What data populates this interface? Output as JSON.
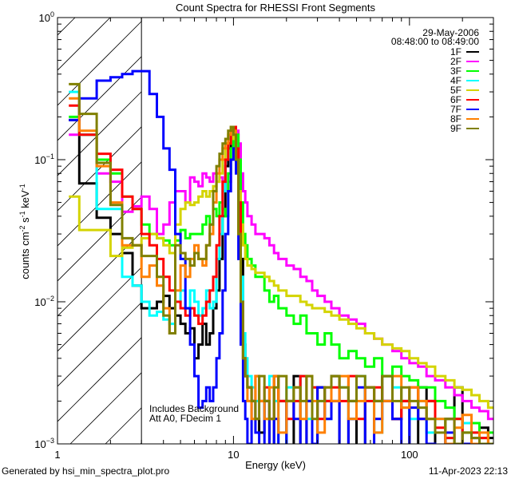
{
  "chart_data": {
    "type": "line",
    "step": true,
    "title": "Count Spectra for RHESSI Front Segments",
    "xlabel": "Energy (keV)",
    "ylabel_parts": [
      "counts cm",
      "-2",
      " s",
      "-1",
      " keV",
      "-1"
    ],
    "xscale": "log",
    "yscale": "log",
    "xlim": [
      1,
      300
    ],
    "ylim": [
      0.001,
      1
    ],
    "x_ticks": [
      {
        "value": 1,
        "label": "1"
      },
      {
        "value": 10,
        "label": "10"
      },
      {
        "value": 100,
        "label": "100"
      }
    ],
    "y_ticks": [
      {
        "value": 1,
        "base": "10",
        "exp": "0"
      },
      {
        "value": 0.1,
        "base": "10",
        "exp": "−1"
      },
      {
        "value": 0.01,
        "base": "10",
        "exp": "−2"
      },
      {
        "value": 0.001,
        "base": "10",
        "exp": "−3"
      }
    ],
    "shaded_region": {
      "from": 1,
      "to": 3,
      "style": "hatched"
    },
    "legend": {
      "placement": "top-right",
      "date": "29-May-2006",
      "time_range": "08:48:00 to 08:49:00"
    },
    "annotations": [
      "Includes Background",
      "Att A0, FDecim 1"
    ],
    "energy_edges": [
      1.16,
      1.33,
      1.67,
      2.0,
      2.33,
      2.67,
      3.0,
      3.33,
      3.67,
      4.0,
      4.33,
      4.67,
      5.0,
      5.33,
      5.67,
      6.0,
      6.33,
      6.67,
      7.0,
      7.33,
      7.67,
      8.0,
      8.33,
      8.67,
      9.0,
      9.33,
      9.67,
      10.0,
      10.33,
      10.67,
      11.0,
      11.33,
      11.67,
      12.0,
      12.67,
      13.33,
      14,
      15,
      16,
      17,
      18,
      20,
      22,
      24,
      26,
      28,
      30,
      33,
      36,
      40,
      45,
      50,
      56,
      63,
      70,
      80,
      90,
      100,
      112,
      125,
      140,
      160,
      180,
      200,
      225,
      250,
      280,
      300
    ],
    "series": [
      {
        "name": "1F",
        "color": "#000000",
        "values": [
          0.19,
          0.068,
          0.039,
          0.03,
          0.022,
          0.013,
          0.009,
          0.009,
          0.01,
          0.011,
          0.009,
          0.008,
          0.007,
          0.006,
          0.0065,
          0.004,
          0.005,
          0.007,
          0.005,
          0.006,
          0.009,
          0.012,
          0.02,
          0.04,
          0.09,
          0.12,
          0.14,
          0.15,
          0.12,
          0.05,
          0.02,
          0.005,
          0.003,
          0.0025,
          0.002,
          0.0015,
          0.0012,
          0.002,
          0.0009,
          0.003,
          0.002,
          0.0009,
          0.003,
          0.0009,
          0.002,
          0.0009,
          0.0025,
          0.002,
          0.003,
          0.0009,
          0.002,
          0.0009,
          0.0025,
          0.002,
          0.003,
          0.0015,
          0.002,
          0.0009,
          0.0025,
          0.002,
          0.0009,
          0.0015,
          0.0025,
          0.001,
          0.0009,
          0.0013,
          0.0011
        ]
      },
      {
        "name": "2F",
        "color": "#ff00ff",
        "values": [
          0.15,
          0.15,
          0.08,
          0.07,
          0.043,
          0.047,
          0.055,
          0.045,
          0.03,
          0.035,
          0.05,
          0.06,
          0.06,
          0.05,
          0.075,
          0.07,
          0.065,
          0.08,
          0.075,
          0.07,
          0.08,
          0.07,
          0.075,
          0.07,
          0.06,
          0.07,
          0.1,
          0.15,
          0.16,
          0.13,
          0.08,
          0.06,
          0.05,
          0.04,
          0.035,
          0.03,
          0.03,
          0.028,
          0.025,
          0.022,
          0.02,
          0.018,
          0.017,
          0.015,
          0.014,
          0.012,
          0.011,
          0.01,
          0.009,
          0.008,
          0.0075,
          0.007,
          0.006,
          0.0055,
          0.005,
          0.0045,
          0.004,
          0.0037,
          0.0035,
          0.003,
          0.0028,
          0.0025,
          0.0022,
          0.002,
          0.0018,
          0.0017,
          0.0015
        ]
      },
      {
        "name": "3F",
        "color": "#00ff00",
        "values": [
          0.2,
          0.15,
          0.1,
          0.08,
          0.055,
          0.045,
          0.035,
          0.03,
          0.028,
          0.027,
          0.025,
          0.027,
          0.032,
          0.028,
          0.03,
          0.03,
          0.03,
          0.035,
          0.04,
          0.035,
          0.045,
          0.04,
          0.05,
          0.045,
          0.04,
          0.08,
          0.12,
          0.15,
          0.15,
          0.1,
          0.05,
          0.03,
          0.025,
          0.02,
          0.018,
          0.015,
          0.015,
          0.012,
          0.01,
          0.011,
          0.009,
          0.008,
          0.007,
          0.008,
          0.006,
          0.006,
          0.005,
          0.006,
          0.005,
          0.004,
          0.0045,
          0.004,
          0.0035,
          0.004,
          0.003,
          0.0035,
          0.003,
          0.0028,
          0.0025,
          0.0025,
          0.002,
          0.0018,
          0.0015,
          0.0012,
          0.0014,
          0.0011,
          0.0012
        ]
      },
      {
        "name": "4F",
        "color": "#00ffff",
        "values": [
          0.3,
          0.15,
          0.045,
          0.045,
          0.015,
          0.013,
          0.01,
          0.008,
          0.0085,
          0.0075,
          0.007,
          0.01,
          0.012,
          0.009,
          0.012,
          0.01,
          0.008,
          0.009,
          0.012,
          0.009,
          0.01,
          0.02,
          0.03,
          0.06,
          0.1,
          0.13,
          0.17,
          0.16,
          0.1,
          0.04,
          0.015,
          0.006,
          0.004,
          0.003,
          0.0025,
          0.002,
          0.002,
          0.0015,
          0.003,
          0.002,
          0.0009,
          0.0025,
          0.002,
          0.003,
          0.0015,
          0.0025,
          0.002,
          0.0015,
          0.002,
          0.0025,
          0.0015,
          0.003,
          0.002,
          0.0012,
          0.002,
          0.0025,
          0.0018,
          0.0015,
          0.002,
          0.0012,
          0.0015,
          0.0011,
          0.0009,
          0.0014,
          0.0012,
          0.001,
          0.0009
        ]
      },
      {
        "name": "5F",
        "color": "#d4d400",
        "values": [
          0.055,
          0.032,
          0.032,
          0.021,
          0.024,
          0.025,
          0.028,
          0.03,
          0.028,
          0.025,
          0.022,
          0.035,
          0.045,
          0.05,
          0.048,
          0.05,
          0.055,
          0.06,
          0.055,
          0.06,
          0.065,
          0.07,
          0.08,
          0.1,
          0.12,
          0.13,
          0.14,
          0.15,
          0.12,
          0.06,
          0.035,
          0.025,
          0.02,
          0.018,
          0.017,
          0.016,
          0.016,
          0.015,
          0.014,
          0.013,
          0.012,
          0.011,
          0.011,
          0.01,
          0.0095,
          0.009,
          0.009,
          0.0085,
          0.008,
          0.0075,
          0.007,
          0.0065,
          0.006,
          0.0055,
          0.005,
          0.0047,
          0.0045,
          0.004,
          0.0037,
          0.0035,
          0.003,
          0.0028,
          0.0025,
          0.0024,
          0.0022,
          0.002,
          0.0018
        ]
      },
      {
        "name": "6F",
        "color": "#ff0000",
        "values": [
          0.24,
          0.15,
          0.11,
          0.085,
          0.055,
          0.045,
          0.03,
          0.025,
          0.02,
          0.015,
          0.012,
          0.01,
          0.009,
          0.008,
          0.009,
          0.008,
          0.007,
          0.008,
          0.01,
          0.012,
          0.015,
          0.025,
          0.04,
          0.07,
          0.1,
          0.13,
          0.16,
          0.17,
          0.12,
          0.05,
          0.01,
          0.004,
          0.003,
          0.0025,
          0.002,
          0.003,
          0.002,
          0.0025,
          0.0015,
          0.003,
          0.002,
          0.0015,
          0.002,
          0.003,
          0.002,
          0.0025,
          0.0015,
          0.002,
          0.0025,
          0.002,
          0.003,
          0.0015,
          0.002,
          0.0025,
          0.002,
          0.0015,
          0.002,
          0.0025,
          0.0015,
          0.002,
          0.0013,
          0.0011,
          0.0015,
          0.001,
          0.0012,
          0.0011,
          0.001
        ]
      },
      {
        "name": "7F",
        "color": "#0000ff",
        "values": [
          0.19,
          0.27,
          0.36,
          0.38,
          0.4,
          0.42,
          0.42,
          0.29,
          0.2,
          0.12,
          0.085,
          0.03,
          0.02,
          0.009,
          0.005,
          0.003,
          0.0018,
          0.002,
          0.0025,
          0.002,
          0.0025,
          0.004,
          0.006,
          0.012,
          0.03,
          0.06,
          0.1,
          0.12,
          0.08,
          0.02,
          0.005,
          0.002,
          0.0015,
          0.001,
          0.002,
          0.0012,
          0.0009,
          0.002,
          0.0009,
          0.0015,
          0.0009,
          0.002,
          0.0015,
          0.0009,
          0.002,
          0.001,
          0.0025,
          0.0015,
          0.002,
          0.0009,
          0.0015,
          0.0025,
          0.0009,
          0.0015,
          0.002,
          0.0015,
          0.0009,
          0.0018,
          0.0015,
          0.001,
          0.0009,
          0.0012,
          0.0009,
          0.001,
          0.0011,
          0.0009,
          0.001
        ]
      },
      {
        "name": "8F",
        "color": "#ff8000",
        "values": [
          0.27,
          0.16,
          0.09,
          0.05,
          0.025,
          0.025,
          0.015,
          0.018,
          0.013,
          0.009,
          0.006,
          0.012,
          0.018,
          0.015,
          0.02,
          0.025,
          0.02,
          0.018,
          0.025,
          0.03,
          0.05,
          0.08,
          0.1,
          0.12,
          0.13,
          0.15,
          0.17,
          0.16,
          0.1,
          0.03,
          0.01,
          0.004,
          0.003,
          0.002,
          0.0015,
          0.003,
          0.002,
          0.0015,
          0.0025,
          0.003,
          0.0012,
          0.002,
          0.0025,
          0.0015,
          0.003,
          0.002,
          0.0012,
          0.0025,
          0.002,
          0.003,
          0.0015,
          0.002,
          0.0025,
          0.0012,
          0.002,
          0.003,
          0.0018,
          0.0025,
          0.002,
          0.0015,
          0.0015,
          0.001,
          0.0013,
          0.0016,
          0.001,
          0.0012,
          0.001
        ]
      },
      {
        "name": "9F",
        "color": "#808000",
        "values": [
          0.34,
          0.21,
          0.095,
          0.048,
          0.028,
          0.025,
          0.021,
          0.021,
          0.015,
          0.008,
          0.006,
          0.025,
          0.022,
          0.02,
          0.018,
          0.022,
          0.02,
          0.02,
          0.025,
          0.035,
          0.06,
          0.09,
          0.11,
          0.13,
          0.14,
          0.16,
          0.17,
          0.15,
          0.1,
          0.03,
          0.01,
          0.004,
          0.003,
          0.0025,
          0.002,
          0.0015,
          0.003,
          0.002,
          0.0015,
          0.0025,
          0.003,
          0.002,
          0.0025,
          0.002,
          0.003,
          0.0015,
          0.002,
          0.0025,
          0.003,
          0.0025,
          0.002,
          0.003,
          0.0025,
          0.002,
          0.003,
          0.002,
          0.0025,
          0.002,
          0.0018,
          0.0015,
          0.0012,
          0.0015,
          0.001,
          0.0012,
          0.0011,
          0.001,
          0.001
        ]
      }
    ]
  },
  "footer": {
    "generated_by": "Generated by hsi_min_spectra_plot.pro",
    "timestamp": "11-Apr-2023 22:13"
  }
}
